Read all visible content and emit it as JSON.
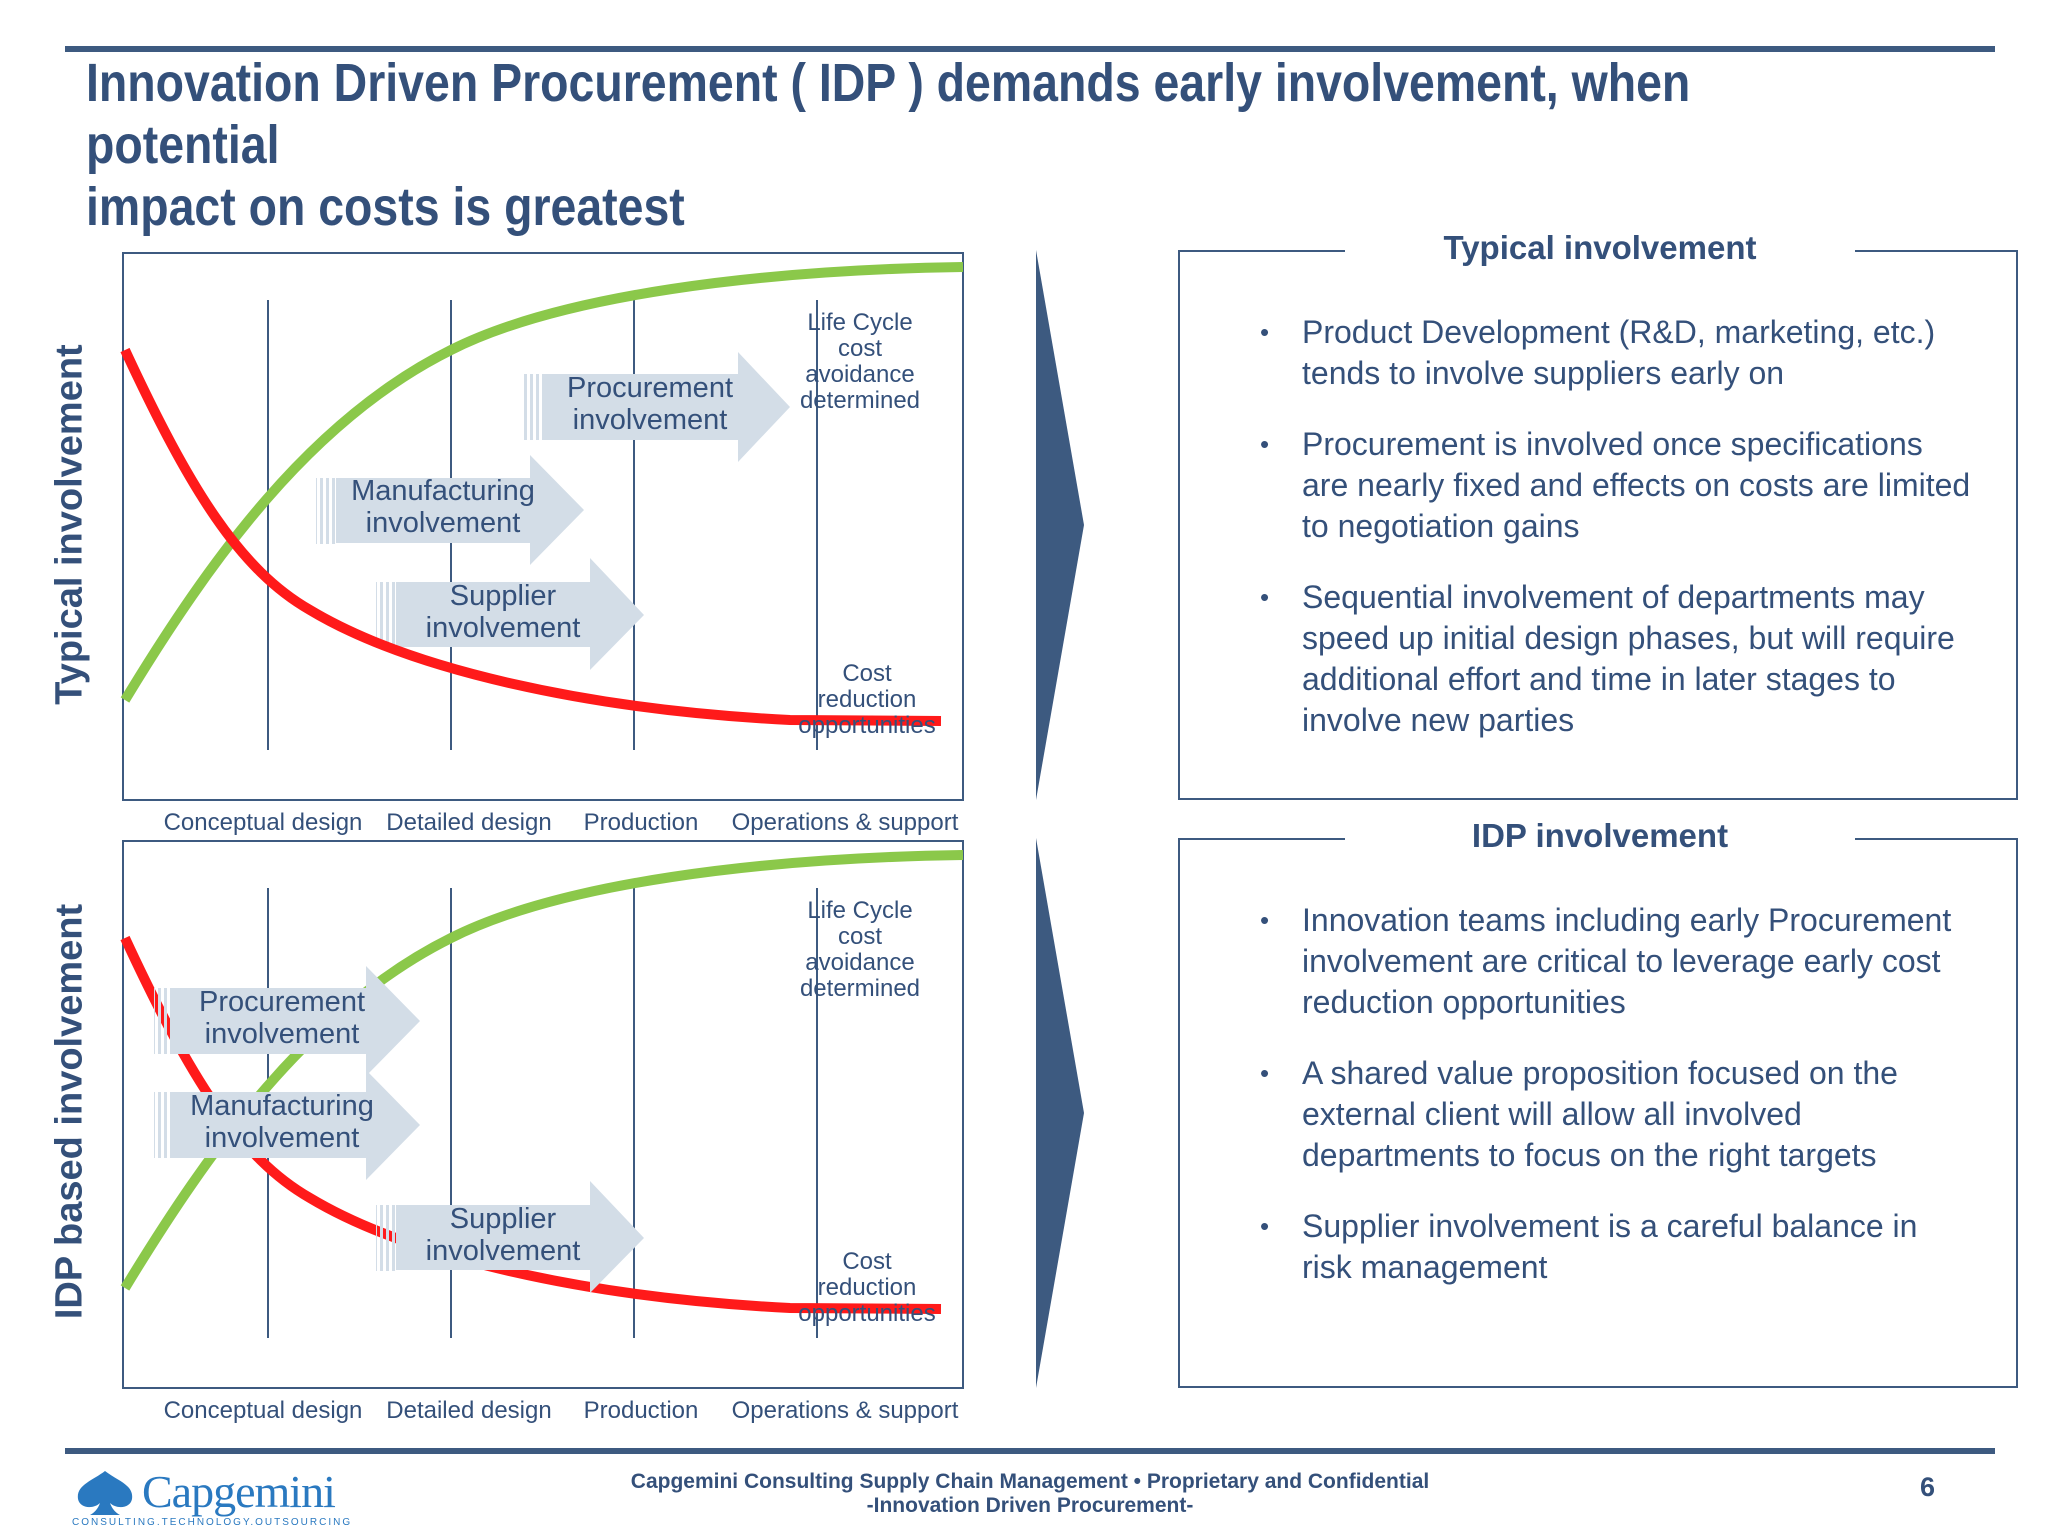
{
  "title": "Innovation Driven Procurement ( IDP ) demands early involvement, when potential\nimpact on costs is greatest",
  "charts": [
    {
      "side_label": "Typical involvement",
      "stages": [
        "Conceptual design",
        "Detailed design",
        "Production",
        "Operations & support"
      ],
      "notes": {
        "lifecycle": [
          "Life Cycle",
          "cost",
          "avoidance",
          "determined"
        ],
        "cost": [
          "Cost",
          "reduction",
          "opportunities"
        ]
      },
      "arrows": [
        {
          "line1": "Procurement",
          "line2": "involvement"
        },
        {
          "line1": "Manufacturing",
          "line2": "involvement"
        },
        {
          "line1": "Supplier",
          "line2": "involvement"
        }
      ]
    },
    {
      "side_label": "IDP based involvement",
      "stages": [
        "Conceptual design",
        "Detailed design",
        "Production",
        "Operations & support"
      ],
      "notes": {
        "lifecycle": [
          "Life Cycle",
          "cost",
          "avoidance",
          "determined"
        ],
        "cost": [
          "Cost",
          "reduction",
          "opportunities"
        ]
      },
      "arrows": [
        {
          "line1": "Procurement",
          "line2": "involvement"
        },
        {
          "line1": "Manufacturing",
          "line2": "involvement"
        },
        {
          "line1": "Supplier",
          "line2": "involvement"
        }
      ]
    }
  ],
  "panels": [
    {
      "title": "Typical involvement",
      "bullets": [
        "Product Development (R&D, marketing, etc.) tends to involve suppliers early on",
        "Procurement is involved once specifications are nearly fixed and effects on costs are limited to negotiation gains",
        "Sequential involvement of departments may speed up initial design phases, but will require additional effort and time in later stages to involve new parties"
      ]
    },
    {
      "title": "IDP involvement",
      "bullets": [
        "Innovation teams including early Procurement involvement are critical to leverage early cost reduction opportunities",
        "A shared value proposition focused on the external client will allow all involved departments to focus on the right targets",
        "Supplier involvement is a careful balance in risk management"
      ]
    }
  ],
  "footer": {
    "line1": "Capgemini Consulting Supply Chain Management • Proprietary and Confidential",
    "line2": "-Innovation Driven Procurement-",
    "page": "6"
  },
  "logo": {
    "word": "Capgemini",
    "tagline": "CONSULTING.TECHNOLOGY.OUTSOURCING"
  },
  "colors": {
    "accent": "#3d5a80",
    "lifecycle_curve": "#8bc84a",
    "cost_curve": "#ff1a1a",
    "arrow_fill": "#d3dde7"
  }
}
